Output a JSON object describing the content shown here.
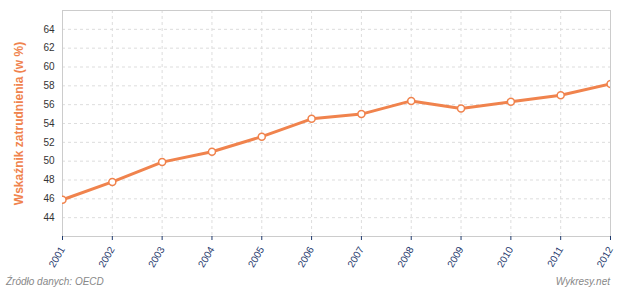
{
  "chart_data": {
    "type": "line",
    "y_label": "Wskaźnik zatrudnienia (w %)",
    "annotations": [
      "Źródło danych: OECD",
      "Wykresy.net"
    ],
    "x": [
      2001,
      2002,
      2003,
      2004,
      2005,
      2006,
      2007,
      2008,
      2009,
      2010,
      2011,
      2012
    ],
    "values": [
      45.9,
      47.8,
      49.9,
      51.0,
      52.6,
      54.5,
      55.0,
      56.4,
      55.6,
      56.3,
      57.0,
      58.2
    ],
    "color": "#f0834d",
    "marker": "circle",
    "xlim": [
      2001,
      2012
    ],
    "xticks": [
      2001,
      2002,
      2003,
      2004,
      2005,
      2006,
      2007,
      2008,
      2009,
      2010,
      2011,
      2012
    ],
    "ylim": [
      42,
      66
    ],
    "yticks": [
      44,
      46,
      48,
      50,
      52,
      54,
      56,
      58,
      60,
      62,
      64
    ],
    "grid": true
  }
}
